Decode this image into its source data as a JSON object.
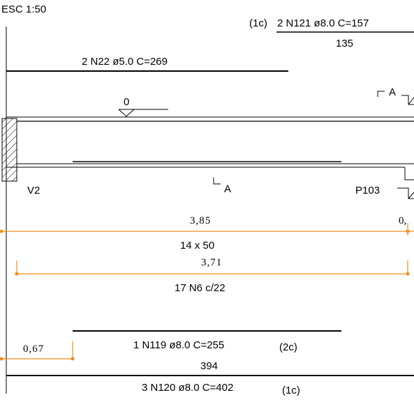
{
  "scale_label": "ESC 1:50",
  "top_rebar": {
    "prefix": "(1c)",
    "label": "2 N121 ø8.0  C=157",
    "length": "135"
  },
  "top_secondary": {
    "label": "2 N22 ø5.0  C=269"
  },
  "level_mark": "0",
  "section_marker_right": "A",
  "section_marker_bottom": "A",
  "support_left": "V2",
  "support_right": "P103",
  "dim_main": {
    "value": "3,85",
    "right_value": "0,"
  },
  "stirrup_spacing": "14 x 50",
  "dim_stirrups": {
    "value": "3,71"
  },
  "stirrups_label": "17 N6 c/22",
  "dim_anchor": {
    "value": "0,67"
  },
  "bottom_rebar_1": {
    "label": "1 N119 ø8.0  C=255",
    "suffix": "(2c)"
  },
  "bottom_length": "394",
  "bottom_rebar_2": {
    "label": "3 N120 ø8.0  C=402",
    "suffix": "(1c)"
  },
  "colors": {
    "line": "#000000",
    "dimension": "#f28c1a"
  }
}
